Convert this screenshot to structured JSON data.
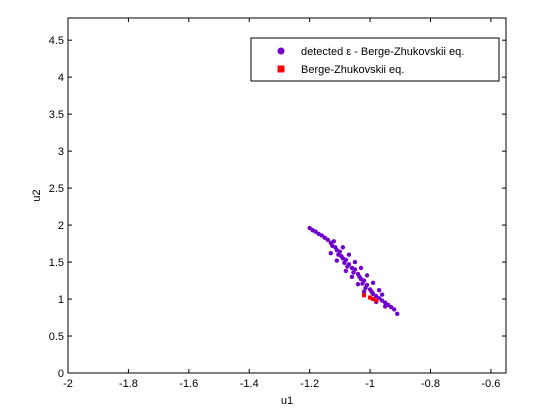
{
  "chart_data": {
    "type": "scatter",
    "xlabel": "u1",
    "ylabel": "u2",
    "xlim": [
      -2,
      -0.55
    ],
    "ylim": [
      0,
      4.8
    ],
    "xticks": [
      -2,
      -1.8,
      -1.6,
      -1.4,
      -1.2,
      -1,
      -0.8,
      -0.6
    ],
    "xtick_labels": [
      "-2",
      "-1.8",
      "-1.6",
      "-1.4",
      "-1.2",
      "-1",
      "-0.8",
      "-0.6"
    ],
    "yticks": [
      0,
      0.5,
      1,
      1.5,
      2,
      2.5,
      3,
      3.5,
      4,
      4.5
    ],
    "ytick_labels": [
      "0",
      "0.5",
      "1",
      "1.5",
      "2",
      "2.5",
      "3",
      "3.5",
      "4",
      "4.5"
    ],
    "grid": false,
    "legend_position": "top-right",
    "series": [
      {
        "name": "detected ε - Berge-Zhukovskii eq.",
        "marker": "circle",
        "color": "#7000cc",
        "points": [
          [
            -1.2,
            1.96
          ],
          [
            -1.19,
            1.93
          ],
          [
            -1.18,
            1.91
          ],
          [
            -1.17,
            1.88
          ],
          [
            -1.16,
            1.86
          ],
          [
            -1.15,
            1.83
          ],
          [
            -1.14,
            1.8
          ],
          [
            -1.13,
            1.76
          ],
          [
            -1.12,
            1.78
          ],
          [
            -1.125,
            1.72
          ],
          [
            -1.115,
            1.7
          ],
          [
            -1.11,
            1.66
          ],
          [
            -1.1,
            1.64
          ],
          [
            -1.105,
            1.6
          ],
          [
            -1.095,
            1.58
          ],
          [
            -1.09,
            1.55
          ],
          [
            -1.08,
            1.53
          ],
          [
            -1.085,
            1.49
          ],
          [
            -1.07,
            1.47
          ],
          [
            -1.075,
            1.44
          ],
          [
            -1.06,
            1.42
          ],
          [
            -1.05,
            1.4
          ],
          [
            -1.055,
            1.36
          ],
          [
            -1.04,
            1.34
          ],
          [
            -1.035,
            1.3
          ],
          [
            -1.03,
            1.27
          ],
          [
            -1.02,
            1.25
          ],
          [
            -1.025,
            1.21
          ],
          [
            -1.01,
            1.19
          ],
          [
            -1.015,
            1.15
          ],
          [
            -1.0,
            1.13
          ],
          [
            -0.995,
            1.1
          ],
          [
            -0.99,
            1.07
          ],
          [
            -0.98,
            1.04
          ],
          [
            -0.97,
            1.01
          ],
          [
            -0.96,
            0.98
          ],
          [
            -0.95,
            0.95
          ],
          [
            -0.94,
            0.92
          ],
          [
            -0.93,
            0.89
          ],
          [
            -0.92,
            0.86
          ],
          [
            -0.91,
            0.8
          ],
          [
            -1.09,
            1.7
          ],
          [
            -1.07,
            1.6
          ],
          [
            -1.05,
            1.5
          ],
          [
            -1.03,
            1.42
          ],
          [
            -1.01,
            1.32
          ],
          [
            -0.99,
            1.22
          ],
          [
            -0.97,
            1.12
          ],
          [
            -0.96,
            1.06
          ],
          [
            -1.13,
            1.62
          ],
          [
            -1.11,
            1.52
          ],
          [
            -1.08,
            1.38
          ],
          [
            -1.06,
            1.3
          ],
          [
            -1.04,
            1.2
          ],
          [
            -1.02,
            1.1
          ],
          [
            -1.0,
            1.02
          ],
          [
            -0.98,
            0.96
          ],
          [
            -0.95,
            0.9
          ]
        ]
      },
      {
        "name": "Berge-Zhukovskii eq.",
        "marker": "square",
        "color": "#ff0000",
        "points": [
          [
            -1.02,
            1.05
          ],
          [
            -1.0,
            1.02
          ],
          [
            -0.99,
            1.0
          ],
          [
            -0.98,
            0.98
          ]
        ]
      }
    ]
  }
}
